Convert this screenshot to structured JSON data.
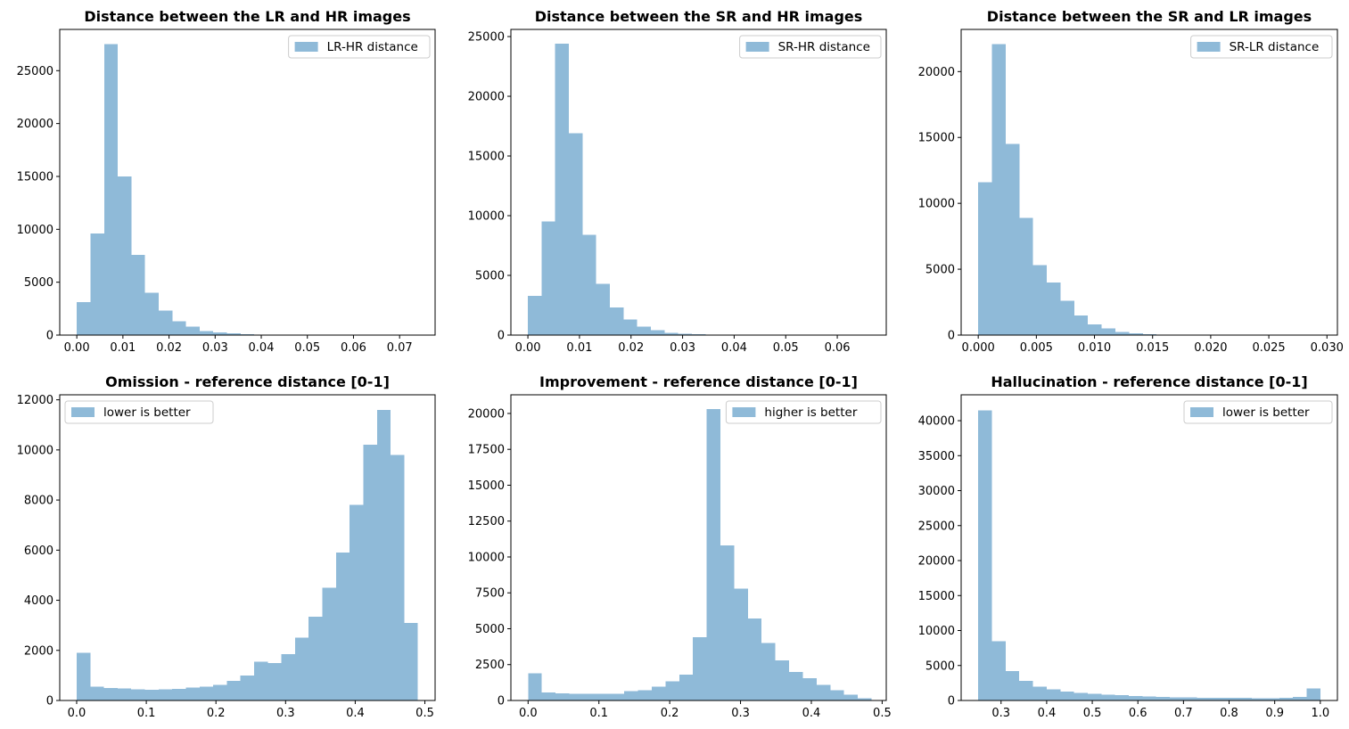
{
  "chart_data": [
    {
      "type": "bar",
      "title": "Distance between the LR and HR images",
      "legend": {
        "label": "LR-HR distance",
        "position": "upper right"
      },
      "xlim": [
        -0.0037,
        0.0777
      ],
      "ylim": [
        0,
        28900
      ],
      "x_ticks": [
        0.0,
        0.01,
        0.02,
        0.03,
        0.04,
        0.05,
        0.06,
        0.07
      ],
      "x_tick_labels": [
        "0.00",
        "0.01",
        "0.02",
        "0.03",
        "0.04",
        "0.05",
        "0.06",
        "0.07"
      ],
      "y_ticks": [
        0,
        5000,
        10000,
        15000,
        20000,
        25000
      ],
      "y_tick_labels": [
        "0",
        "5000",
        "10000",
        "15000",
        "20000",
        "25000"
      ],
      "bin_start": 0.0,
      "bin_width": 0.00296,
      "values": [
        3100,
        9600,
        27500,
        15000,
        7600,
        4000,
        2300,
        1300,
        800,
        400,
        250,
        150,
        80,
        50,
        30,
        20,
        10,
        10,
        5,
        5,
        3,
        2,
        2,
        1,
        1
      ]
    },
    {
      "type": "bar",
      "title": "Distance between the SR and HR images",
      "legend": {
        "label": "SR-HR distance",
        "position": "upper right"
      },
      "xlim": [
        -0.0033,
        0.0695
      ],
      "ylim": [
        0,
        25600
      ],
      "x_ticks": [
        0.0,
        0.01,
        0.02,
        0.03,
        0.04,
        0.05,
        0.06
      ],
      "x_tick_labels": [
        "0.00",
        "0.01",
        "0.02",
        "0.03",
        "0.04",
        "0.05",
        "0.06"
      ],
      "y_ticks": [
        0,
        5000,
        10000,
        15000,
        20000,
        25000
      ],
      "y_tick_labels": [
        "0",
        "5000",
        "10000",
        "15000",
        "20000",
        "25000"
      ],
      "bin_start": 0.0,
      "bin_width": 0.00265,
      "values": [
        3300,
        9500,
        24400,
        16900,
        8400,
        4300,
        2300,
        1300,
        700,
        400,
        200,
        120,
        60,
        40,
        20,
        10,
        10,
        5,
        5,
        3,
        2,
        2,
        1,
        1,
        1
      ]
    },
    {
      "type": "bar",
      "title": "Distance between the SR and LR images",
      "legend": {
        "label": "SR-LR distance",
        "position": "upper right"
      },
      "xlim": [
        -0.00147,
        0.0309
      ],
      "ylim": [
        0,
        23200
      ],
      "x_ticks": [
        0.0,
        0.005,
        0.01,
        0.015,
        0.02,
        0.025,
        0.03
      ],
      "x_tick_labels": [
        "0.000",
        "0.005",
        "0.010",
        "0.015",
        "0.020",
        "0.025",
        "0.030"
      ],
      "y_ticks": [
        0,
        5000,
        10000,
        15000,
        20000
      ],
      "y_tick_labels": [
        "0",
        "5000",
        "10000",
        "15000",
        "20000"
      ],
      "bin_start": 0.0,
      "bin_width": 0.00118,
      "values": [
        11600,
        22100,
        14500,
        8900,
        5300,
        4000,
        2600,
        1500,
        800,
        500,
        250,
        150,
        80,
        40,
        20,
        10,
        10,
        5,
        3,
        2,
        1,
        1,
        1,
        1,
        1
      ]
    },
    {
      "type": "bar",
      "title": "Omission - reference distance [0-1]",
      "legend": {
        "label": "lower is better",
        "position": "upper left"
      },
      "xlim": [
        -0.0243,
        0.5147
      ],
      "ylim": [
        0,
        12200
      ],
      "x_ticks": [
        0.0,
        0.1,
        0.2,
        0.3,
        0.4,
        0.5
      ],
      "x_tick_labels": [
        "0.0",
        "0.1",
        "0.2",
        "0.3",
        "0.4",
        "0.5"
      ],
      "y_ticks": [
        0,
        2000,
        4000,
        6000,
        8000,
        10000,
        12000
      ],
      "y_tick_labels": [
        "0",
        "2000",
        "4000",
        "6000",
        "8000",
        "10000",
        "12000"
      ],
      "bin_start": 0.0,
      "bin_width": 0.0196,
      "values": [
        1900,
        550,
        500,
        480,
        450,
        430,
        450,
        460,
        520,
        560,
        620,
        780,
        1000,
        1550,
        1500,
        1850,
        2500,
        3350,
        4500,
        5900,
        7800,
        10200,
        11600,
        9800,
        3100
      ]
    },
    {
      "type": "bar",
      "title": "Improvement - reference distance [0-1]",
      "legend": {
        "label": "higher is better",
        "position": "upper right"
      },
      "xlim": [
        -0.0243,
        0.5058
      ],
      "ylim": [
        0,
        21300
      ],
      "x_ticks": [
        0.0,
        0.1,
        0.2,
        0.3,
        0.4,
        0.5
      ],
      "x_tick_labels": [
        "0.0",
        "0.1",
        "0.2",
        "0.3",
        "0.4",
        "0.5"
      ],
      "y_ticks": [
        0,
        2500,
        5000,
        7500,
        10000,
        12500,
        15000,
        17500,
        20000
      ],
      "y_tick_labels": [
        "0",
        "2500",
        "5000",
        "7500",
        "10000",
        "12500",
        "15000",
        "17500",
        "20000"
      ],
      "bin_start": 0.0,
      "bin_width": 0.0194,
      "values": [
        1900,
        550,
        500,
        480,
        480,
        480,
        480,
        650,
        700,
        950,
        1350,
        1800,
        4400,
        20300,
        10800,
        7800,
        5700,
        4000,
        2800,
        2000,
        1550,
        1100,
        700,
        400,
        150
      ]
    },
    {
      "type": "bar",
      "title": "Hallucination - reference distance [0-1]",
      "legend": {
        "label": "lower is better",
        "position": "upper right"
      },
      "xlim": [
        0.2125,
        1.0375
      ],
      "ylim": [
        0,
        43700
      ],
      "x_ticks": [
        0.3,
        0.4,
        0.5,
        0.6,
        0.7,
        0.8,
        0.9,
        1.0
      ],
      "x_tick_labels": [
        "0.3",
        "0.4",
        "0.5",
        "0.6",
        "0.7",
        "0.8",
        "0.9",
        "1.0"
      ],
      "y_ticks": [
        0,
        5000,
        10000,
        15000,
        20000,
        25000,
        30000,
        35000,
        40000
      ],
      "y_tick_labels": [
        "0",
        "5000",
        "10000",
        "15000",
        "20000",
        "25000",
        "30000",
        "35000",
        "40000"
      ],
      "bin_start": 0.25,
      "bin_width": 0.03,
      "values": [
        41500,
        8500,
        4200,
        2800,
        2000,
        1600,
        1300,
        1100,
        950,
        850,
        750,
        650,
        550,
        500,
        450,
        420,
        400,
        380,
        370,
        360,
        350,
        350,
        400,
        500,
        1700
      ]
    }
  ],
  "style": {
    "bar_color": "#8fbad8",
    "axis_color": "#000000",
    "legend_border": "#cccccc"
  }
}
